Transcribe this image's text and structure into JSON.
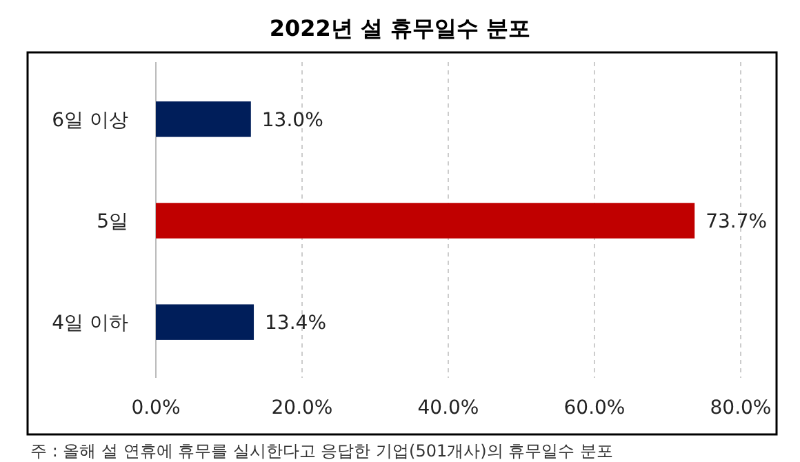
{
  "chart_data": {
    "type": "bar",
    "orientation": "horizontal",
    "title": "2022년 설 휴무일수 분포",
    "categories": [
      "6일 이상",
      "5일",
      "4일 이하"
    ],
    "values": [
      13.0,
      73.7,
      13.4
    ],
    "colors": [
      "#001e5a",
      "#c00000",
      "#001e5a"
    ],
    "value_labels": [
      "13.0%",
      "73.7%",
      "13.4%"
    ],
    "xlim": [
      0,
      80
    ],
    "xticks": [
      {
        "value": 0,
        "label": "0.0%"
      },
      {
        "value": 20,
        "label": "20.0%"
      },
      {
        "value": 40,
        "label": "40.0%"
      },
      {
        "value": 60,
        "label": "60.0%"
      },
      {
        "value": 80,
        "label": "80.0%"
      }
    ],
    "grid": "x",
    "annotations": [
      "주 : 올해 설 연휴에 휴무를 실시한다고 응답한 기업(501개사)의 휴무일수 분포"
    ]
  }
}
